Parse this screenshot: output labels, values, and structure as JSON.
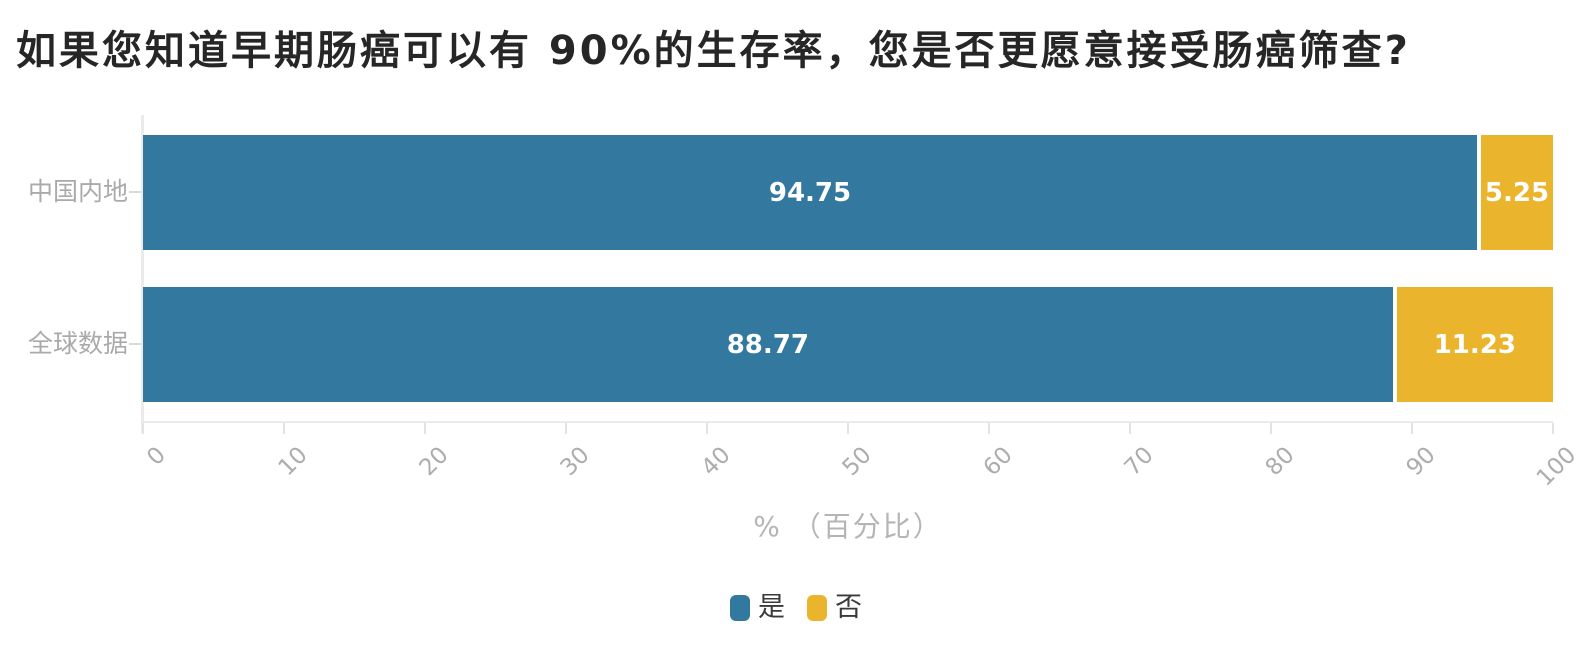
{
  "chart_data": {
    "type": "bar",
    "orientation": "horizontal-stacked",
    "title": "如果您知道早期肠癌可以有 90%的生存率，您是否更愿意接受肠癌筛查?",
    "categories": [
      "中国内地",
      "全球数据"
    ],
    "series": [
      {
        "name": "是",
        "color": "#32789F",
        "values": [
          "94.75",
          "88.77"
        ]
      },
      {
        "name": "否",
        "color": "#EBB42D",
        "values": [
          "5.25",
          "11.23"
        ]
      }
    ],
    "xlabel": "% （百分比）",
    "x_ticks": [
      "0",
      "10",
      "20",
      "30",
      "40",
      "50",
      "60",
      "70",
      "80",
      "90",
      "100"
    ],
    "xlim": [
      0,
      100
    ],
    "grid": false,
    "legend_position": "bottom",
    "value_label_position": "inside",
    "value_label_color": "#ffffff"
  },
  "colors": {
    "title_text": "#262626",
    "category_text": "#aaaaaa",
    "axis_line": "#ebebeb",
    "tick_label_text": "#adadad",
    "axis_title_text": "#b5b5b5",
    "legend_text": "#3a3a3a",
    "background": "#ffffff"
  }
}
